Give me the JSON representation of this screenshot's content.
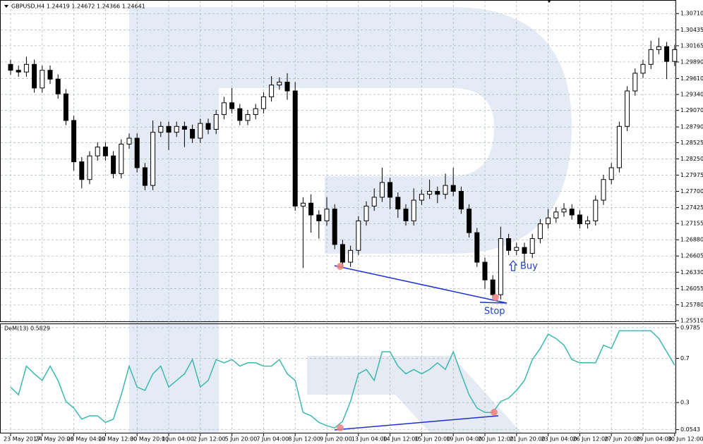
{
  "chart_data": [
    {
      "type": "candlestick",
      "title": "GBPUSD,H4 1.24419 1.24672 1.24366 1.24641",
      "categories": [
        "23 May 2017",
        null,
        null,
        null,
        "24 May 20:00",
        null,
        null,
        null,
        "26 May 04:00",
        null,
        null,
        null,
        "29 May 12:00",
        null,
        null,
        null,
        "30 May 20:00",
        null,
        null,
        null,
        "1 Jun 04:00",
        null,
        null,
        null,
        "2 Jun 12:00",
        null,
        null,
        null,
        "5 Jun 20:00",
        null,
        null,
        null,
        "7 Jun 04:00",
        null,
        null,
        null,
        "8 Jun 12:00",
        null,
        null,
        null,
        "9 Jun 20:00",
        null,
        null,
        null,
        "13 Jun 04:00",
        null,
        null,
        null,
        "14 Jun 12:00",
        null,
        null,
        null,
        "15 Jun 20:00",
        null,
        null,
        null,
        "19 Jun 04:00",
        null,
        null,
        null,
        "20 Jun 12:00",
        null,
        null,
        null,
        "21 Jun 20:00",
        null,
        null,
        null,
        "23 Jun 04:00",
        null,
        null,
        null,
        "26 Jun 12:00",
        null,
        null,
        null,
        "27 Jun 20:00",
        null,
        null,
        null,
        "29 Jun 04:00",
        null,
        null,
        null,
        "30 Jun 12:00"
      ],
      "open": [
        1.2985,
        1.2975,
        1.2972,
        1.2985,
        1.2945,
        1.2975,
        1.296,
        1.2935,
        1.289,
        1.282,
        1.279,
        1.283,
        1.2845,
        1.283,
        1.28,
        1.285,
        1.286,
        1.281,
        1.278,
        1.287,
        1.288,
        1.287,
        1.288,
        1.2875,
        1.286,
        1.2885,
        1.2875,
        1.29,
        1.292,
        1.291,
        1.289,
        1.29,
        1.291,
        1.293,
        1.295,
        1.2955,
        1.294,
        1.2745,
        1.275,
        1.273,
        1.272,
        1.274,
        1.268,
        1.265,
        1.267,
        1.272,
        1.2745,
        1.276,
        1.2785,
        1.276,
        1.274,
        1.272,
        1.2755,
        1.2765,
        1.277,
        1.2765,
        1.278,
        1.277,
        1.274,
        1.27,
        1.265,
        1.262,
        1.2595,
        1.269,
        1.267,
        1.2675,
        1.2665,
        1.269,
        1.2715,
        1.2725,
        1.2735,
        1.274,
        1.273,
        1.2715,
        1.272,
        1.2755,
        1.279,
        1.281,
        1.288,
        1.294,
        1.297,
        1.2985,
        1.301,
        1.3015,
        1.299
      ],
      "high": [
        1.2993,
        1.2983,
        1.2998,
        1.2993,
        1.2983,
        1.2983,
        1.2968,
        1.2943,
        1.2898,
        1.2828,
        1.2838,
        1.2853,
        1.2853,
        1.2838,
        1.2858,
        1.2868,
        1.2868,
        1.2818,
        1.289,
        1.2888,
        1.2888,
        1.2888,
        1.2888,
        1.2883,
        1.2893,
        1.2893,
        1.2908,
        1.293,
        1.2945,
        1.2918,
        1.2908,
        1.2918,
        1.2938,
        1.2965,
        1.2963,
        1.297,
        1.2955,
        1.276,
        1.2765,
        1.2738,
        1.276,
        1.2748,
        1.2688,
        1.2678,
        1.2728,
        1.2753,
        1.2775,
        1.281,
        1.2793,
        1.2768,
        1.2748,
        1.2775,
        1.2773,
        1.279,
        1.2778,
        1.28,
        1.281,
        1.2778,
        1.2748,
        1.2708,
        1.2658,
        1.2628,
        1.271,
        1.2698,
        1.2683,
        1.2683,
        1.2698,
        1.2723,
        1.274,
        1.2743,
        1.275,
        1.2748,
        1.2738,
        1.2728,
        1.2763,
        1.2798,
        1.2818,
        1.2888,
        1.2948,
        1.2978,
        1.2993,
        1.3025,
        1.303,
        1.3023,
        1.3018
      ],
      "low": [
        1.2967,
        1.2964,
        1.2964,
        1.2937,
        1.2937,
        1.2952,
        1.2927,
        1.2882,
        1.2805,
        1.2775,
        1.2782,
        1.2822,
        1.2822,
        1.2792,
        1.2792,
        1.2842,
        1.2802,
        1.2772,
        1.2772,
        1.2862,
        1.284,
        1.2862,
        1.2845,
        1.2852,
        1.2852,
        1.2867,
        1.2867,
        1.2892,
        1.2902,
        1.2882,
        1.2882,
        1.2892,
        1.2902,
        1.2922,
        1.2942,
        1.2925,
        1.2737,
        1.264,
        1.27,
        1.269,
        1.2712,
        1.2672,
        1.264,
        1.2642,
        1.2662,
        1.2712,
        1.2737,
        1.2752,
        1.274,
        1.2725,
        1.2712,
        1.2712,
        1.2747,
        1.2757,
        1.275,
        1.2757,
        1.2762,
        1.2732,
        1.2692,
        1.2642,
        1.2605,
        1.259,
        1.2587,
        1.2662,
        1.2662,
        1.265,
        1.2657,
        1.2682,
        1.2707,
        1.2717,
        1.2727,
        1.2722,
        1.2707,
        1.2707,
        1.2712,
        1.2747,
        1.2782,
        1.2802,
        1.2872,
        1.2932,
        1.2962,
        1.2977,
        1.3002,
        1.296,
        1.2982
      ],
      "close": [
        1.2975,
        1.2972,
        1.2985,
        1.2945,
        1.2975,
        1.296,
        1.2935,
        1.289,
        1.282,
        1.279,
        1.283,
        1.2845,
        1.283,
        1.28,
        1.285,
        1.286,
        1.281,
        1.278,
        1.287,
        1.288,
        1.287,
        1.288,
        1.2875,
        1.286,
        1.2885,
        1.2875,
        1.29,
        1.292,
        1.291,
        1.289,
        1.29,
        1.291,
        1.293,
        1.295,
        1.2955,
        1.294,
        1.2745,
        1.275,
        1.273,
        1.272,
        1.274,
        1.268,
        1.265,
        1.267,
        1.272,
        1.2745,
        1.276,
        1.2785,
        1.276,
        1.274,
        1.272,
        1.2755,
        1.2765,
        1.277,
        1.2765,
        1.278,
        1.277,
        1.274,
        1.27,
        1.265,
        1.262,
        1.2595,
        1.269,
        1.267,
        1.2675,
        1.2665,
        1.269,
        1.2715,
        1.2725,
        1.2735,
        1.274,
        1.273,
        1.2715,
        1.272,
        1.2755,
        1.279,
        1.281,
        1.288,
        1.294,
        1.297,
        1.2985,
        1.301,
        1.3015,
        1.299,
        1.301
      ],
      "up_color": "#ffffff",
      "down_color": "#000000",
      "ylim": [
        1.2551,
        1.3088
      ],
      "yticks": [
        {
          "value": 1.3071,
          "label": "1.30710"
        },
        {
          "value": 1.30435,
          "label": "1.30435"
        },
        {
          "value": 1.30165,
          "label": "1.30165"
        },
        {
          "value": 1.2989,
          "label": "1.29890"
        },
        {
          "value": 1.2961,
          "label": "1.29610"
        },
        {
          "value": 1.2934,
          "label": "1.29340"
        },
        {
          "value": 1.2907,
          "label": "1.29070"
        },
        {
          "value": 1.2879,
          "label": "1.28790"
        },
        {
          "value": 1.28525,
          "label": "1.28525"
        },
        {
          "value": 1.2825,
          "label": "1.28250"
        },
        {
          "value": 1.27975,
          "label": "1.27975"
        },
        {
          "value": 1.277,
          "label": "1.27700"
        },
        {
          "value": 1.27425,
          "label": "1.27425"
        },
        {
          "value": 1.27155,
          "label": "1.27155"
        },
        {
          "value": 1.2688,
          "label": "1.26880"
        },
        {
          "value": 1.26605,
          "label": "1.26605"
        },
        {
          "value": 1.2633,
          "label": "1.26330"
        },
        {
          "value": 1.26055,
          "label": "1.26055"
        },
        {
          "value": 1.2578,
          "label": "1.25780"
        },
        {
          "value": 1.2551,
          "label": "1.25510"
        }
      ],
      "grid": true,
      "annotations": [
        "Buy",
        "Stop"
      ]
    },
    {
      "type": "line",
      "title": "DeM(13) 0.5829",
      "color": "#3cb8b0",
      "values": [
        0.44,
        0.37,
        0.63,
        0.56,
        0.5,
        0.63,
        0.5,
        0.31,
        0.25,
        0.15,
        0.18,
        0.18,
        0.12,
        0.15,
        0.37,
        0.63,
        0.44,
        0.41,
        0.56,
        0.63,
        0.44,
        0.5,
        0.56,
        0.69,
        0.44,
        0.5,
        0.69,
        0.66,
        0.69,
        0.63,
        0.66,
        0.66,
        0.63,
        0.63,
        0.69,
        0.56,
        0.5,
        0.21,
        0.18,
        0.12,
        0.09,
        0.07,
        0.13,
        0.31,
        0.56,
        0.6,
        0.5,
        0.76,
        0.76,
        0.63,
        0.56,
        0.6,
        0.56,
        0.6,
        0.66,
        0.6,
        0.76,
        0.56,
        0.37,
        0.25,
        0.21,
        0.21,
        0.31,
        0.34,
        0.41,
        0.5,
        0.69,
        0.79,
        0.92,
        0.88,
        0.82,
        0.69,
        0.66,
        0.66,
        0.66,
        0.82,
        0.79,
        0.95,
        0.95,
        0.95,
        0.95,
        0.95,
        0.88,
        0.76,
        0.64
      ],
      "ylim": [
        0.02,
        1.01
      ],
      "yticks": [
        0.9785,
        0.7,
        0.3,
        0.0543
      ],
      "grid": true
    }
  ]
}
